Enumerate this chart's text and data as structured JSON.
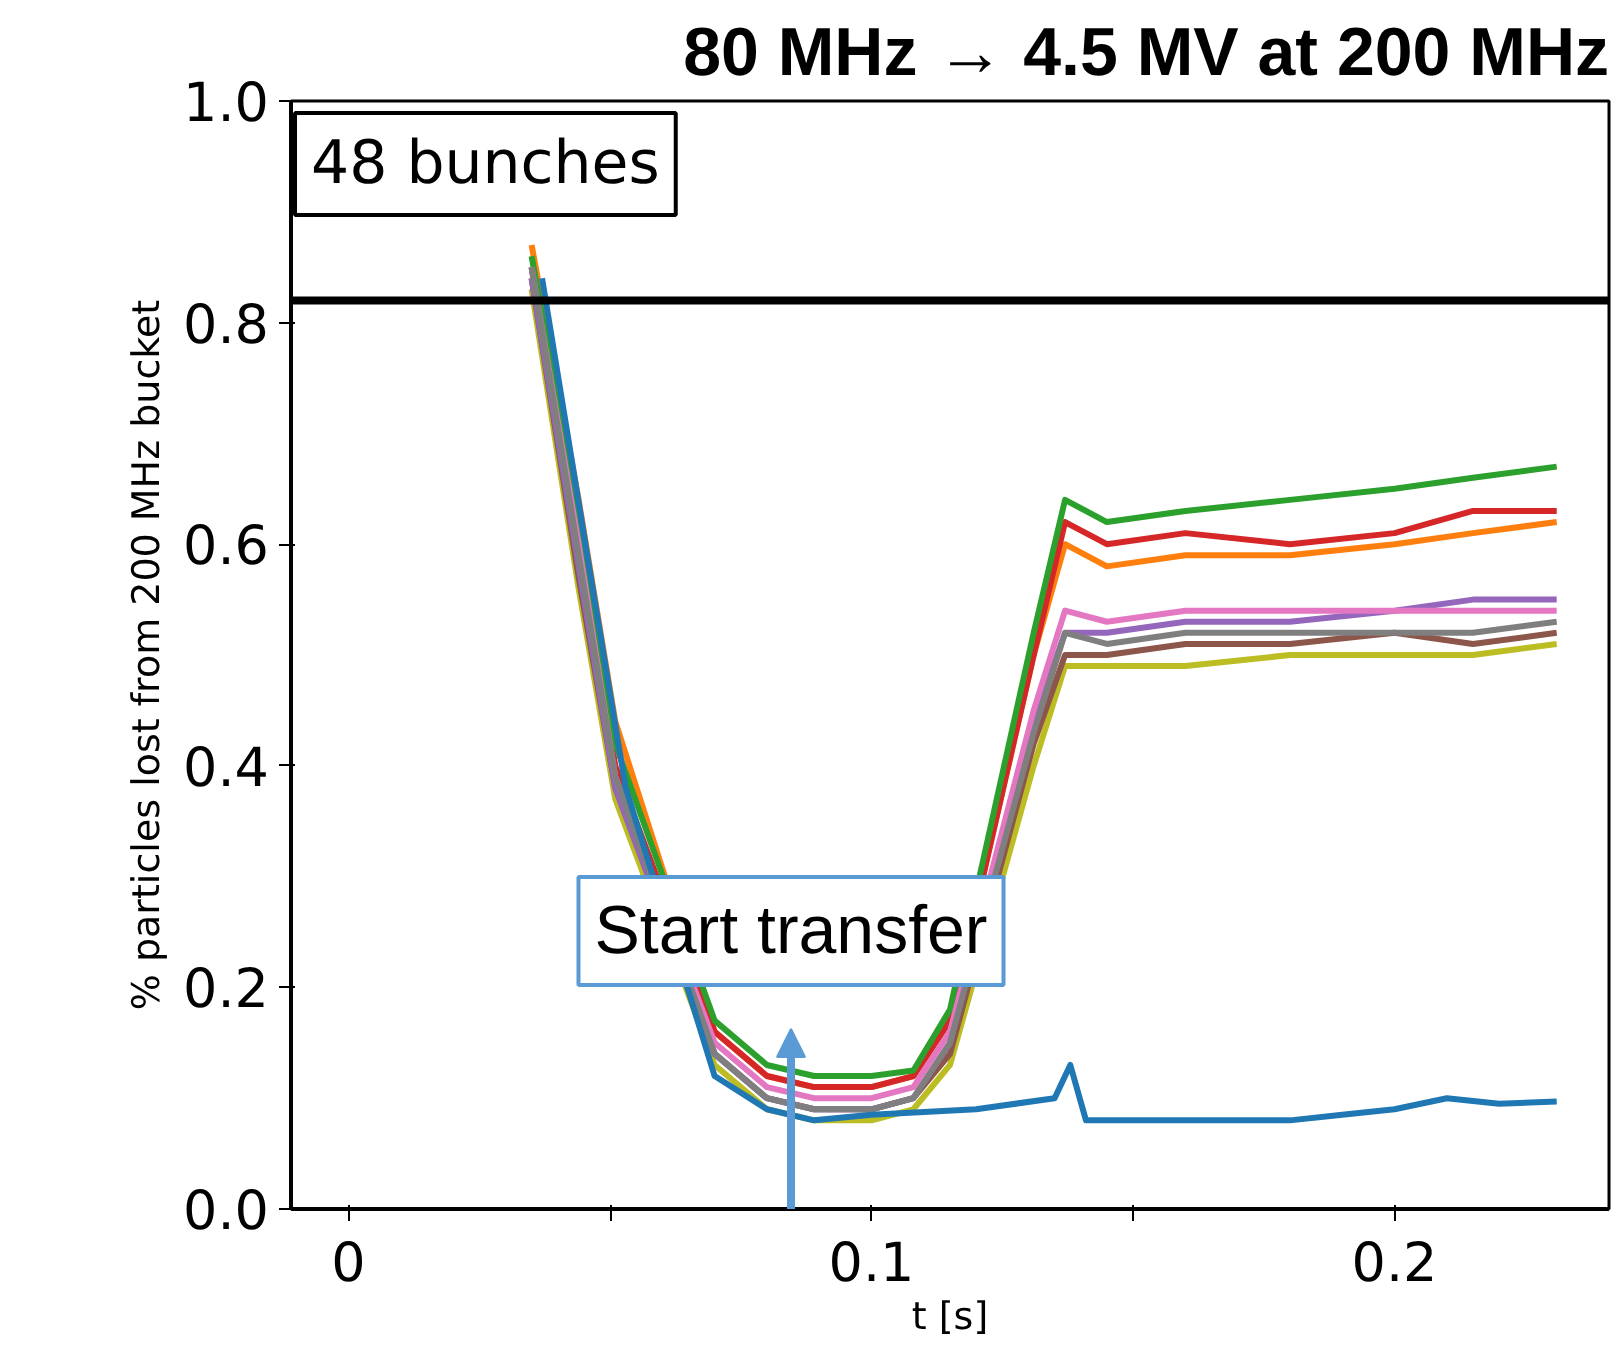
{
  "chart_data": {
    "type": "line",
    "title": "80 MHz → 4.5 MV at 200 MHz",
    "xlabel": "t [s]",
    "ylabel": "% particles lost from 200 MHz bucket",
    "x": [
      0.035,
      0.044,
      0.051,
      0.07,
      0.08,
      0.089,
      0.1,
      0.108,
      0.115,
      0.131,
      0.137,
      0.145,
      0.16,
      0.18,
      0.2,
      0.215,
      0.231
    ],
    "series": [
      {
        "color": "#bcbd22",
        "values": [
          0.83,
          0.56,
          0.37,
          0.13,
          0.09,
          0.08,
          0.08,
          0.09,
          0.13,
          0.4,
          0.49,
          0.49,
          0.49,
          0.5,
          0.5,
          0.5,
          0.51
        ]
      },
      {
        "color": "#8c564b",
        "values": [
          0.84,
          0.57,
          0.38,
          0.14,
          0.1,
          0.09,
          0.09,
          0.1,
          0.14,
          0.42,
          0.5,
          0.5,
          0.51,
          0.51,
          0.52,
          0.51,
          0.52
        ]
      },
      {
        "color": "#9467bd",
        "values": [
          0.84,
          0.58,
          0.38,
          0.14,
          0.1,
          0.09,
          0.09,
          0.1,
          0.15,
          0.44,
          0.52,
          0.52,
          0.53,
          0.53,
          0.54,
          0.55,
          0.55
        ]
      },
      {
        "color": "#ff7f0e",
        "values": [
          0.87,
          0.64,
          0.44,
          0.16,
          0.12,
          0.11,
          0.11,
          0.12,
          0.17,
          0.5,
          0.6,
          0.58,
          0.59,
          0.59,
          0.6,
          0.61,
          0.62
        ]
      },
      {
        "color": "#d62728",
        "values": [
          0.85,
          0.6,
          0.4,
          0.16,
          0.12,
          0.11,
          0.11,
          0.12,
          0.17,
          0.5,
          0.62,
          0.6,
          0.61,
          0.6,
          0.61,
          0.63,
          0.63
        ]
      },
      {
        "color": "#2ca02c",
        "values": [
          0.86,
          0.62,
          0.42,
          0.17,
          0.13,
          0.12,
          0.12,
          0.125,
          0.18,
          0.52,
          0.64,
          0.62,
          0.63,
          0.64,
          0.65,
          0.66,
          0.67
        ]
      },
      {
        "color": "#e377c2",
        "values": [
          0.85,
          0.6,
          0.39,
          0.15,
          0.11,
          0.1,
          0.1,
          0.11,
          0.16,
          0.45,
          0.54,
          0.53,
          0.54,
          0.54,
          0.54,
          0.54,
          0.54
        ]
      },
      {
        "color": "#7f7f7f",
        "values": [
          0.85,
          0.59,
          0.39,
          0.14,
          0.1,
          0.09,
          0.09,
          0.1,
          0.15,
          0.43,
          0.52,
          0.51,
          0.52,
          0.52,
          0.52,
          0.52,
          0.53
        ]
      },
      {
        "color": "#1f77b4",
        "x": [
          0.037,
          0.046,
          0.053,
          0.07,
          0.08,
          0.089,
          0.1,
          0.12,
          0.135,
          0.138,
          0.141,
          0.16,
          0.18,
          0.19,
          0.2,
          0.21,
          0.22,
          0.231
        ],
        "values": [
          0.84,
          0.58,
          0.38,
          0.12,
          0.09,
          0.08,
          0.085,
          0.09,
          0.1,
          0.13,
          0.08,
          0.08,
          0.08,
          0.085,
          0.09,
          0.1,
          0.095,
          0.097
        ]
      }
    ],
    "xlim": [
      -0.011,
      0.241
    ],
    "ylim": [
      0,
      1.0
    ],
    "xticks": [
      0,
      {
        "value": 0.05,
        "label": null
      },
      0.1,
      {
        "value": 0.15,
        "label": null
      },
      0.2
    ],
    "yticks": [
      {
        "value": 0,
        "label": "0.0"
      },
      0.2,
      0.4,
      0.6,
      0.8,
      {
        "value": 1.0,
        "label": "1.0"
      }
    ],
    "ref_lines": [
      {
        "axis": "y",
        "value": 0.82,
        "color": "#000000"
      }
    ],
    "annotations": [
      "48 bunches",
      "Start transfer"
    ],
    "grid": false,
    "line_style": "solid",
    "marker": "none"
  }
}
